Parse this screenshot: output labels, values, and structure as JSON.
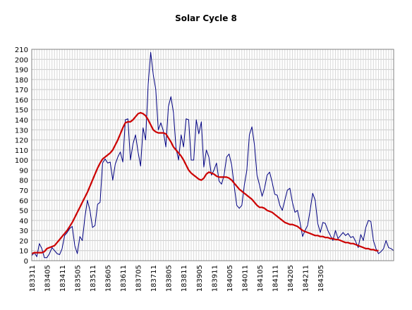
{
  "chart_data": {
    "type": "line",
    "title": "Solar Cycle 8",
    "xlabel": "",
    "ylabel": "",
    "ylim": [
      0,
      210
    ],
    "y_ticks": [
      0,
      10,
      20,
      30,
      40,
      50,
      60,
      70,
      80,
      90,
      100,
      110,
      120,
      130,
      140,
      150,
      160,
      170,
      180,
      190,
      200,
      210
    ],
    "x_tick_labels": [
      "183311",
      "183405",
      "183411",
      "183505",
      "183511",
      "183605",
      "183611",
      "183705",
      "183711",
      "183805",
      "183811",
      "183905",
      "183911",
      "184005",
      "184011",
      "184105",
      "184111",
      "184205",
      "184211",
      "184305"
    ],
    "grid": true,
    "legend": "none",
    "series": [
      {
        "color": "#000080",
        "values": [
          5,
          8,
          4,
          17,
          12,
          3,
          3,
          7,
          13,
          10,
          7,
          6,
          12,
          25,
          28,
          32,
          34,
          15,
          7,
          24,
          20,
          43,
          60,
          50,
          33,
          35,
          56,
          58,
          97,
          101,
          97,
          98,
          80,
          96,
          103,
          108,
          98,
          140,
          141,
          100,
          116,
          125,
          108,
          94,
          132,
          120,
          175,
          207,
          185,
          170,
          130,
          137,
          129,
          113,
          153,
          163,
          147,
          112,
          100,
          125,
          113,
          141,
          140,
          100,
          100,
          140,
          126,
          138,
          93,
          110,
          103,
          85,
          90,
          97,
          79,
          76,
          85,
          103,
          106,
          95,
          74,
          55,
          52,
          55,
          75,
          90,
          125,
          133,
          115,
          85,
          75,
          64,
          72,
          85,
          88,
          78,
          66,
          65,
          55,
          50,
          60,
          70,
          72,
          58,
          48,
          50,
          38,
          24,
          30,
          35,
          50,
          67,
          60,
          37,
          28,
          38,
          37,
          30,
          25,
          20,
          30,
          22,
          25,
          28,
          25,
          27,
          23,
          24,
          19,
          13,
          26,
          20,
          33,
          40,
          39,
          20,
          12,
          7,
          9,
          12,
          20,
          13,
          12,
          10
        ]
      },
      {
        "color": "#cc0000",
        "values": [
          7,
          8,
          8,
          8,
          8,
          9,
          12,
          13,
          14,
          15,
          18,
          21,
          24,
          27,
          30,
          34,
          38,
          43,
          48,
          53,
          58,
          63,
          68,
          74,
          80,
          86,
          92,
          97,
          101,
          103,
          105,
          107,
          110,
          115,
          120,
          126,
          132,
          137,
          138,
          138,
          140,
          143,
          146,
          147,
          146,
          144,
          140,
          135,
          130,
          128,
          127,
          127,
          127,
          126,
          122,
          118,
          113,
          110,
          107,
          104,
          100,
          95,
          90,
          87,
          85,
          83,
          81,
          80,
          82,
          86,
          88,
          87,
          86,
          84,
          83,
          83,
          83,
          83,
          82,
          80,
          77,
          74,
          71,
          69,
          67,
          65,
          63,
          61,
          58,
          55,
          53,
          53,
          52,
          50,
          49,
          48,
          46,
          44,
          42,
          40,
          38,
          37,
          36,
          36,
          35,
          34,
          32,
          30,
          29,
          28,
          27,
          26,
          25,
          25,
          24,
          24,
          23,
          23,
          22,
          22,
          21,
          21,
          20,
          19,
          18,
          18,
          17,
          17,
          16,
          15,
          14,
          13,
          12,
          12,
          11,
          11,
          10,
          10
        ]
      }
    ]
  }
}
